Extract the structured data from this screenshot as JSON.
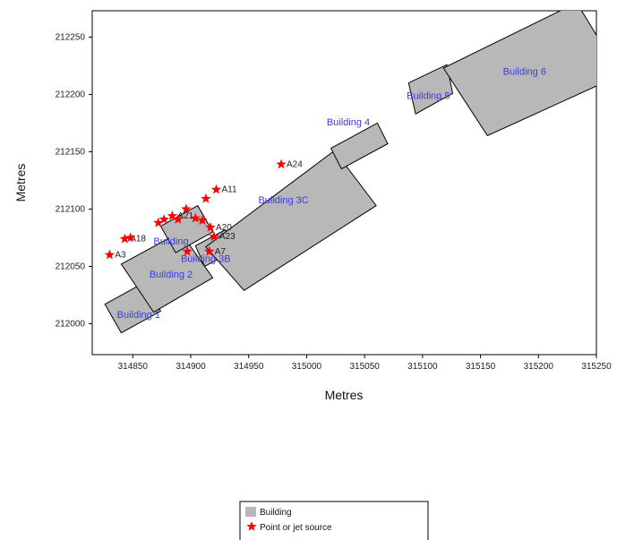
{
  "chart_data": {
    "type": "scatter",
    "xlabel": "Metres",
    "ylabel": "Metres",
    "xlim": [
      314815,
      315250
    ],
    "ylim": [
      211973,
      212273
    ],
    "x_ticks": [
      314850,
      314900,
      314950,
      315000,
      315050,
      315100,
      315150,
      315200,
      315250
    ],
    "y_ticks": [
      212000,
      212050,
      212100,
      212150,
      212200,
      212250
    ],
    "buildings": [
      {
        "name": "Building 1",
        "label_at": [
          314855,
          212005
        ],
        "polygon": [
          [
            314826,
            212017
          ],
          [
            314860,
            212036
          ],
          [
            314874,
            212011
          ],
          [
            314840,
            211992
          ]
        ]
      },
      {
        "name": "Building 2",
        "label_at": [
          314883,
          212040
        ],
        "polygon": [
          [
            314840,
            212052
          ],
          [
            314891,
            212080
          ],
          [
            314919,
            212040
          ],
          [
            314868,
            212010
          ]
        ]
      },
      {
        "name": "Building",
        "label_at": [
          314883,
          212069
        ],
        "polygon": [
          [
            314874,
            212085
          ],
          [
            314906,
            212103
          ],
          [
            314919,
            212080
          ],
          [
            314887,
            212062
          ]
        ]
      },
      {
        "name": "Building 3B",
        "label_at": [
          314913,
          212054
        ],
        "polygon": [
          [
            314904,
            212068
          ],
          [
            314930,
            212082
          ],
          [
            314938,
            212064
          ],
          [
            314912,
            212050
          ]
        ]
      },
      {
        "name": "Building 3C",
        "label_at": [
          314980,
          212105
        ],
        "polygon": [
          [
            314913,
            212067
          ],
          [
            315024,
            212151
          ],
          [
            315060,
            212103
          ],
          [
            314946,
            212029
          ]
        ]
      },
      {
        "name": "Building 4",
        "label_at": [
          315036,
          212173
        ],
        "polygon": [
          [
            315021,
            212153
          ],
          [
            315061,
            212175
          ],
          [
            315070,
            212157
          ],
          [
            315030,
            212135
          ]
        ]
      },
      {
        "name": "Building 5",
        "label_at": [
          315105,
          212196
        ],
        "polygon": [
          [
            315088,
            212210
          ],
          [
            315121,
            212226
          ],
          [
            315126,
            212201
          ],
          [
            315094,
            212183
          ]
        ]
      },
      {
        "name": "Building 6",
        "label_at": [
          315188,
          212217
        ],
        "polygon": [
          [
            315118,
            212223
          ],
          [
            315233,
            212280
          ],
          [
            315271,
            212217
          ],
          [
            315156,
            212164
          ]
        ]
      }
    ],
    "source_series_name": "Point or jet source",
    "sources": [
      {
        "label": "A3",
        "x": 314830,
        "y": 212060
      },
      {
        "label": "A18",
        "x": 314843,
        "y": 212074
      },
      {
        "label": "",
        "x": 314848,
        "y": 212075
      },
      {
        "label": "",
        "x": 314872,
        "y": 212088
      },
      {
        "label": "",
        "x": 314877,
        "y": 212091
      },
      {
        "label": "A21",
        "x": 314884,
        "y": 212094
      },
      {
        "label": "",
        "x": 314889,
        "y": 212091
      },
      {
        "label": "",
        "x": 314896,
        "y": 212100
      },
      {
        "label": "",
        "x": 314904,
        "y": 212092
      },
      {
        "label": "",
        "x": 314910,
        "y": 212090
      },
      {
        "label": "A11",
        "x": 314922,
        "y": 212117
      },
      {
        "label": "",
        "x": 314913,
        "y": 212109
      },
      {
        "label": "A20",
        "x": 314917,
        "y": 212084
      },
      {
        "label": "A23",
        "x": 314920,
        "y": 212076
      },
      {
        "label": "",
        "x": 314897,
        "y": 212063
      },
      {
        "label": "A7",
        "x": 314916,
        "y": 212063
      },
      {
        "label": "A24",
        "x": 314978,
        "y": 212139
      }
    ],
    "legend": {
      "placement": "bottom-center",
      "entries": [
        {
          "label": "Building",
          "marker": "grey-square"
        },
        {
          "label": "Point or jet source",
          "marker": "red-star"
        }
      ]
    },
    "colors": {
      "building_fill": "#b8b8b8",
      "building_stroke": "#000000",
      "building_label": "#3b3be0",
      "source_marker": "#ff0000"
    }
  }
}
